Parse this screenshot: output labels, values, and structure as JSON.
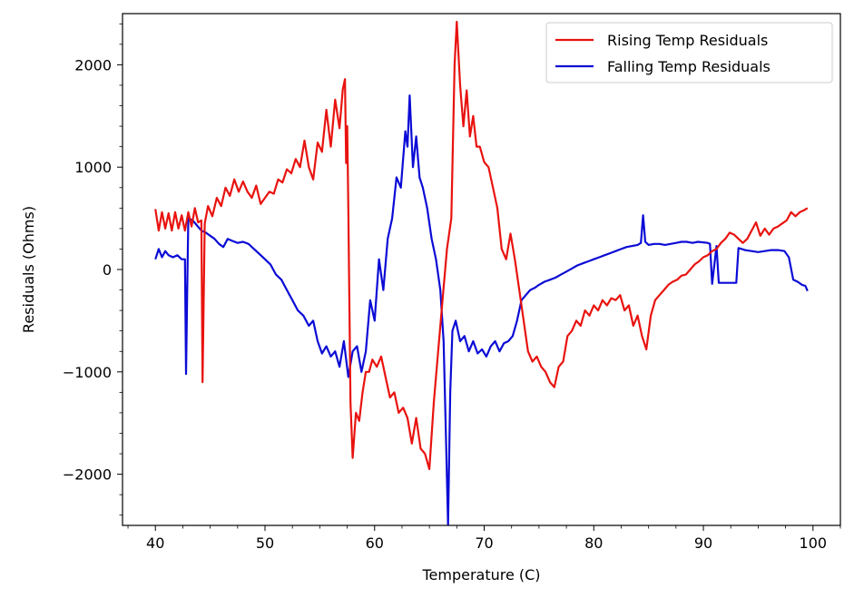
{
  "chart_data": {
    "type": "line",
    "title": "",
    "xlabel": "Temperature (C)",
    "ylabel": "Residuals (Ohms)",
    "xlim": [
      37,
      102.5
    ],
    "ylim": [
      -2500,
      2500
    ],
    "xticks": [
      40,
      50,
      60,
      70,
      80,
      90,
      100
    ],
    "xtick_labels": [
      "40",
      "50",
      "60",
      "70",
      "80",
      "90",
      "100"
    ],
    "yticks": [
      -2000,
      -1000,
      0,
      1000,
      2000
    ],
    "ytick_labels": [
      "−2000",
      "−1000",
      "0",
      "1000",
      "2000"
    ],
    "minor_ticks": true,
    "grid": false,
    "legend_position": "top-right",
    "series": [
      {
        "name": "Rising Temp Residuals",
        "color": "#e8130f",
        "points": [
          [
            40.0,
            590
          ],
          [
            40.3,
            380
          ],
          [
            40.6,
            560
          ],
          [
            40.9,
            400
          ],
          [
            41.2,
            550
          ],
          [
            41.5,
            380
          ],
          [
            41.8,
            560
          ],
          [
            42.1,
            400
          ],
          [
            42.4,
            530
          ],
          [
            42.7,
            380
          ],
          [
            43.0,
            560
          ],
          [
            43.3,
            420
          ],
          [
            43.6,
            600
          ],
          [
            43.9,
            460
          ],
          [
            44.2,
            480
          ],
          [
            44.3,
            -1100
          ],
          [
            44.5,
            450
          ],
          [
            44.8,
            620
          ],
          [
            45.2,
            520
          ],
          [
            45.6,
            700
          ],
          [
            46.0,
            620
          ],
          [
            46.4,
            800
          ],
          [
            46.8,
            720
          ],
          [
            47.2,
            880
          ],
          [
            47.6,
            760
          ],
          [
            48.0,
            860
          ],
          [
            48.4,
            760
          ],
          [
            48.8,
            700
          ],
          [
            49.2,
            820
          ],
          [
            49.6,
            640
          ],
          [
            50.0,
            700
          ],
          [
            50.4,
            760
          ],
          [
            50.8,
            740
          ],
          [
            51.2,
            880
          ],
          [
            51.6,
            850
          ],
          [
            52.0,
            980
          ],
          [
            52.4,
            940
          ],
          [
            52.8,
            1080
          ],
          [
            53.2,
            1000
          ],
          [
            53.6,
            1260
          ],
          [
            54.0,
            1000
          ],
          [
            54.4,
            880
          ],
          [
            54.8,
            1240
          ],
          [
            55.2,
            1150
          ],
          [
            55.6,
            1560
          ],
          [
            56.0,
            1200
          ],
          [
            56.4,
            1660
          ],
          [
            56.8,
            1380
          ],
          [
            57.1,
            1760
          ],
          [
            57.3,
            1860
          ],
          [
            57.4,
            1040
          ],
          [
            57.5,
            1400
          ],
          [
            57.6,
            600
          ],
          [
            57.8,
            -1300
          ],
          [
            58.0,
            -1840
          ],
          [
            58.3,
            -1400
          ],
          [
            58.6,
            -1480
          ],
          [
            58.9,
            -1200
          ],
          [
            59.2,
            -1000
          ],
          [
            59.5,
            -1000
          ],
          [
            59.8,
            -880
          ],
          [
            60.2,
            -950
          ],
          [
            60.6,
            -850
          ],
          [
            61.0,
            -1050
          ],
          [
            61.4,
            -1250
          ],
          [
            61.8,
            -1200
          ],
          [
            62.2,
            -1400
          ],
          [
            62.6,
            -1350
          ],
          [
            63.0,
            -1450
          ],
          [
            63.4,
            -1700
          ],
          [
            63.8,
            -1450
          ],
          [
            64.2,
            -1750
          ],
          [
            64.6,
            -1800
          ],
          [
            65.0,
            -1950
          ],
          [
            65.4,
            -1300
          ],
          [
            65.8,
            -800
          ],
          [
            66.2,
            -300
          ],
          [
            66.6,
            200
          ],
          [
            67.0,
            500
          ],
          [
            67.3,
            2000
          ],
          [
            67.5,
            2420
          ],
          [
            67.8,
            1800
          ],
          [
            68.1,
            1400
          ],
          [
            68.4,
            1750
          ],
          [
            68.7,
            1300
          ],
          [
            69.0,
            1500
          ],
          [
            69.3,
            1200
          ],
          [
            69.6,
            1200
          ],
          [
            70.0,
            1050
          ],
          [
            70.4,
            1000
          ],
          [
            70.8,
            800
          ],
          [
            71.2,
            600
          ],
          [
            71.6,
            200
          ],
          [
            72.0,
            100
          ],
          [
            72.4,
            350
          ],
          [
            72.8,
            100
          ],
          [
            73.2,
            -200
          ],
          [
            73.6,
            -500
          ],
          [
            74.0,
            -800
          ],
          [
            74.4,
            -900
          ],
          [
            74.8,
            -850
          ],
          [
            75.2,
            -950
          ],
          [
            75.6,
            -1000
          ],
          [
            76.0,
            -1100
          ],
          [
            76.4,
            -1150
          ],
          [
            76.8,
            -950
          ],
          [
            77.2,
            -900
          ],
          [
            77.6,
            -650
          ],
          [
            78.0,
            -600
          ],
          [
            78.4,
            -500
          ],
          [
            78.8,
            -550
          ],
          [
            79.2,
            -400
          ],
          [
            79.6,
            -450
          ],
          [
            80.0,
            -350
          ],
          [
            80.4,
            -400
          ],
          [
            80.8,
            -300
          ],
          [
            81.2,
            -350
          ],
          [
            81.6,
            -280
          ],
          [
            82.0,
            -300
          ],
          [
            82.4,
            -250
          ],
          [
            82.8,
            -400
          ],
          [
            83.2,
            -350
          ],
          [
            83.6,
            -550
          ],
          [
            84.0,
            -450
          ],
          [
            84.4,
            -650
          ],
          [
            84.8,
            -780
          ],
          [
            85.2,
            -450
          ],
          [
            85.6,
            -300
          ],
          [
            86.0,
            -250
          ],
          [
            86.4,
            -200
          ],
          [
            86.8,
            -150
          ],
          [
            87.2,
            -120
          ],
          [
            87.6,
            -100
          ],
          [
            88.0,
            -60
          ],
          [
            88.4,
            -50
          ],
          [
            88.8,
            0
          ],
          [
            89.2,
            50
          ],
          [
            89.6,
            80
          ],
          [
            90.0,
            120
          ],
          [
            90.4,
            140
          ],
          [
            90.8,
            180
          ],
          [
            91.2,
            200
          ],
          [
            91.6,
            260
          ],
          [
            92.0,
            300
          ],
          [
            92.4,
            360
          ],
          [
            92.8,
            340
          ],
          [
            93.2,
            300
          ],
          [
            93.6,
            260
          ],
          [
            94.0,
            300
          ],
          [
            94.4,
            380
          ],
          [
            94.8,
            460
          ],
          [
            95.2,
            330
          ],
          [
            95.6,
            400
          ],
          [
            96.0,
            340
          ],
          [
            96.4,
            400
          ],
          [
            96.8,
            420
          ],
          [
            97.2,
            450
          ],
          [
            97.6,
            480
          ],
          [
            98.0,
            560
          ],
          [
            98.4,
            520
          ],
          [
            98.8,
            560
          ],
          [
            99.2,
            580
          ],
          [
            99.5,
            600
          ]
        ]
      },
      {
        "name": "Falling Temp Residuals",
        "color": "#0b0bd6",
        "points": [
          [
            40.0,
            100
          ],
          [
            40.3,
            200
          ],
          [
            40.6,
            120
          ],
          [
            40.9,
            180
          ],
          [
            41.2,
            140
          ],
          [
            41.6,
            120
          ],
          [
            42.0,
            140
          ],
          [
            42.4,
            100
          ],
          [
            42.7,
            100
          ],
          [
            42.8,
            -1020
          ],
          [
            42.9,
            -200
          ],
          [
            43.0,
            500
          ],
          [
            43.4,
            480
          ],
          [
            43.8,
            430
          ],
          [
            44.2,
            380
          ],
          [
            44.6,
            360
          ],
          [
            45.0,
            330
          ],
          [
            45.4,
            300
          ],
          [
            45.8,
            250
          ],
          [
            46.2,
            220
          ],
          [
            46.6,
            300
          ],
          [
            47.0,
            280
          ],
          [
            47.5,
            260
          ],
          [
            48.0,
            270
          ],
          [
            48.5,
            250
          ],
          [
            49.0,
            200
          ],
          [
            49.5,
            150
          ],
          [
            50.0,
            100
          ],
          [
            50.5,
            50
          ],
          [
            51.0,
            -50
          ],
          [
            51.5,
            -100
          ],
          [
            52.0,
            -200
          ],
          [
            52.5,
            -300
          ],
          [
            53.0,
            -400
          ],
          [
            53.5,
            -450
          ],
          [
            54.0,
            -550
          ],
          [
            54.4,
            -500
          ],
          [
            54.8,
            -700
          ],
          [
            55.2,
            -820
          ],
          [
            55.6,
            -750
          ],
          [
            56.0,
            -850
          ],
          [
            56.4,
            -800
          ],
          [
            56.8,
            -950
          ],
          [
            57.2,
            -700
          ],
          [
            57.6,
            -1050
          ],
          [
            58.0,
            -800
          ],
          [
            58.4,
            -750
          ],
          [
            58.8,
            -1000
          ],
          [
            59.2,
            -800
          ],
          [
            59.6,
            -300
          ],
          [
            60.0,
            -500
          ],
          [
            60.4,
            100
          ],
          [
            60.8,
            -200
          ],
          [
            61.2,
            300
          ],
          [
            61.6,
            500
          ],
          [
            62.0,
            900
          ],
          [
            62.4,
            800
          ],
          [
            62.8,
            1350
          ],
          [
            63.0,
            1200
          ],
          [
            63.2,
            1700
          ],
          [
            63.5,
            1000
          ],
          [
            63.8,
            1300
          ],
          [
            64.1,
            900
          ],
          [
            64.4,
            800
          ],
          [
            64.8,
            600
          ],
          [
            65.2,
            300
          ],
          [
            65.6,
            100
          ],
          [
            66.0,
            -200
          ],
          [
            66.3,
            -700
          ],
          [
            66.5,
            -1600
          ],
          [
            66.7,
            -2500
          ],
          [
            66.9,
            -1200
          ],
          [
            67.1,
            -600
          ],
          [
            67.4,
            -500
          ],
          [
            67.8,
            -700
          ],
          [
            68.2,
            -650
          ],
          [
            68.6,
            -800
          ],
          [
            69.0,
            -700
          ],
          [
            69.4,
            -820
          ],
          [
            69.8,
            -780
          ],
          [
            70.2,
            -850
          ],
          [
            70.6,
            -750
          ],
          [
            71.0,
            -700
          ],
          [
            71.4,
            -800
          ],
          [
            71.8,
            -720
          ],
          [
            72.2,
            -700
          ],
          [
            72.6,
            -650
          ],
          [
            73.0,
            -500
          ],
          [
            73.4,
            -300
          ],
          [
            73.8,
            -250
          ],
          [
            74.2,
            -200
          ],
          [
            74.6,
            -180
          ],
          [
            75.0,
            -150
          ],
          [
            75.5,
            -120
          ],
          [
            76.0,
            -100
          ],
          [
            76.5,
            -80
          ],
          [
            77.0,
            -50
          ],
          [
            77.5,
            -20
          ],
          [
            78.0,
            10
          ],
          [
            78.5,
            40
          ],
          [
            79.0,
            60
          ],
          [
            79.5,
            80
          ],
          [
            80.0,
            100
          ],
          [
            80.5,
            120
          ],
          [
            81.0,
            140
          ],
          [
            81.5,
            160
          ],
          [
            82.0,
            180
          ],
          [
            82.5,
            200
          ],
          [
            83.0,
            220
          ],
          [
            83.5,
            230
          ],
          [
            84.0,
            240
          ],
          [
            84.3,
            260
          ],
          [
            84.5,
            530
          ],
          [
            84.7,
            270
          ],
          [
            85.0,
            240
          ],
          [
            85.5,
            250
          ],
          [
            86.0,
            250
          ],
          [
            86.5,
            240
          ],
          [
            87.0,
            250
          ],
          [
            87.5,
            260
          ],
          [
            88.0,
            270
          ],
          [
            88.5,
            270
          ],
          [
            89.0,
            260
          ],
          [
            89.5,
            270
          ],
          [
            90.0,
            265
          ],
          [
            90.4,
            260
          ],
          [
            90.6,
            250
          ],
          [
            90.8,
            -140
          ],
          [
            91.2,
            230
          ],
          [
            91.4,
            -130
          ],
          [
            92.0,
            -130
          ],
          [
            92.5,
            -130
          ],
          [
            93.0,
            -130
          ],
          [
            93.2,
            210
          ],
          [
            93.8,
            190
          ],
          [
            94.4,
            180
          ],
          [
            95.0,
            170
          ],
          [
            95.6,
            180
          ],
          [
            96.2,
            190
          ],
          [
            96.8,
            190
          ],
          [
            97.4,
            180
          ],
          [
            97.8,
            120
          ],
          [
            98.2,
            -100
          ],
          [
            98.6,
            -120
          ],
          [
            99.0,
            -150
          ],
          [
            99.3,
            -160
          ],
          [
            99.5,
            -210
          ]
        ]
      }
    ]
  }
}
